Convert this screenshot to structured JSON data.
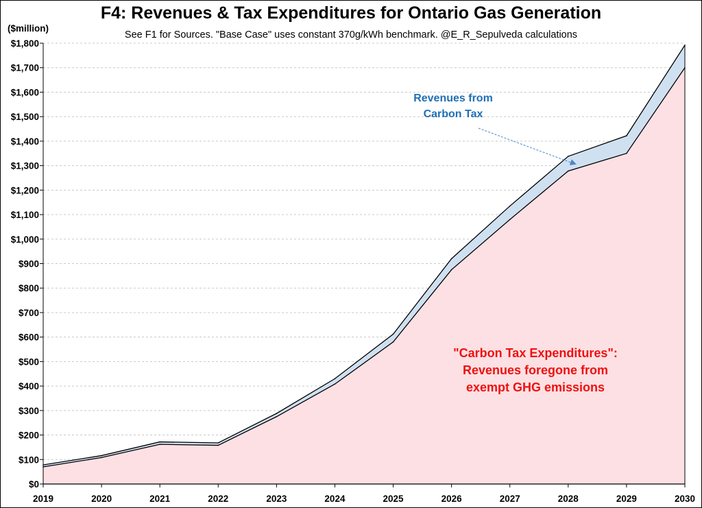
{
  "chart_data": {
    "type": "area",
    "title": "F4: Revenues & Tax Expenditures for Ontario Gas Generation",
    "subtitle": "See F1 for Sources. \"Base Case\" uses constant 370g/kWh benchmark. @E_R_Sepulveda calculations",
    "ylabel": "($million)",
    "xlabel": "",
    "x": [
      "2019",
      "2020",
      "2021",
      "2022",
      "2023",
      "2024",
      "2025",
      "2026",
      "2027",
      "2028",
      "2029",
      "2030"
    ],
    "ylim": [
      0,
      1800
    ],
    "y_ticks": [
      0,
      100,
      200,
      300,
      400,
      500,
      600,
      700,
      800,
      900,
      1000,
      1100,
      1200,
      1300,
      1400,
      1500,
      1600,
      1700,
      1800
    ],
    "y_tick_labels": [
      "$0",
      "$100",
      "$200",
      "$300",
      "$400",
      "$500",
      "$600",
      "$700",
      "$800",
      "$900",
      "$1,000",
      "$1,100",
      "$1,200",
      "$1,300",
      "$1,400",
      "$1,500",
      "$1,600",
      "$1,700",
      "$1,800"
    ],
    "grid": "horizontal dashed",
    "stacked": true,
    "series": [
      {
        "values": [
          70,
          108,
          162,
          158,
          275,
          408,
          580,
          875,
          1080,
          1278,
          1350,
          1700
        ],
        "color": "#fde0e3"
      },
      {
        "values": [
          8,
          8,
          10,
          10,
          13,
          22,
          32,
          45,
          55,
          60,
          72,
          92
        ],
        "color": "#cfe0f1"
      }
    ],
    "annotations": [
      {
        "lines": [
          "Revenues from",
          "Carbon Tax"
        ],
        "color": "#1f6fb4"
      },
      {
        "lines": [
          "\"Carbon Tax Expenditures\":",
          "Revenues foregone from",
          "exempt GHG emissions"
        ],
        "color": "#ee1111"
      }
    ]
  }
}
